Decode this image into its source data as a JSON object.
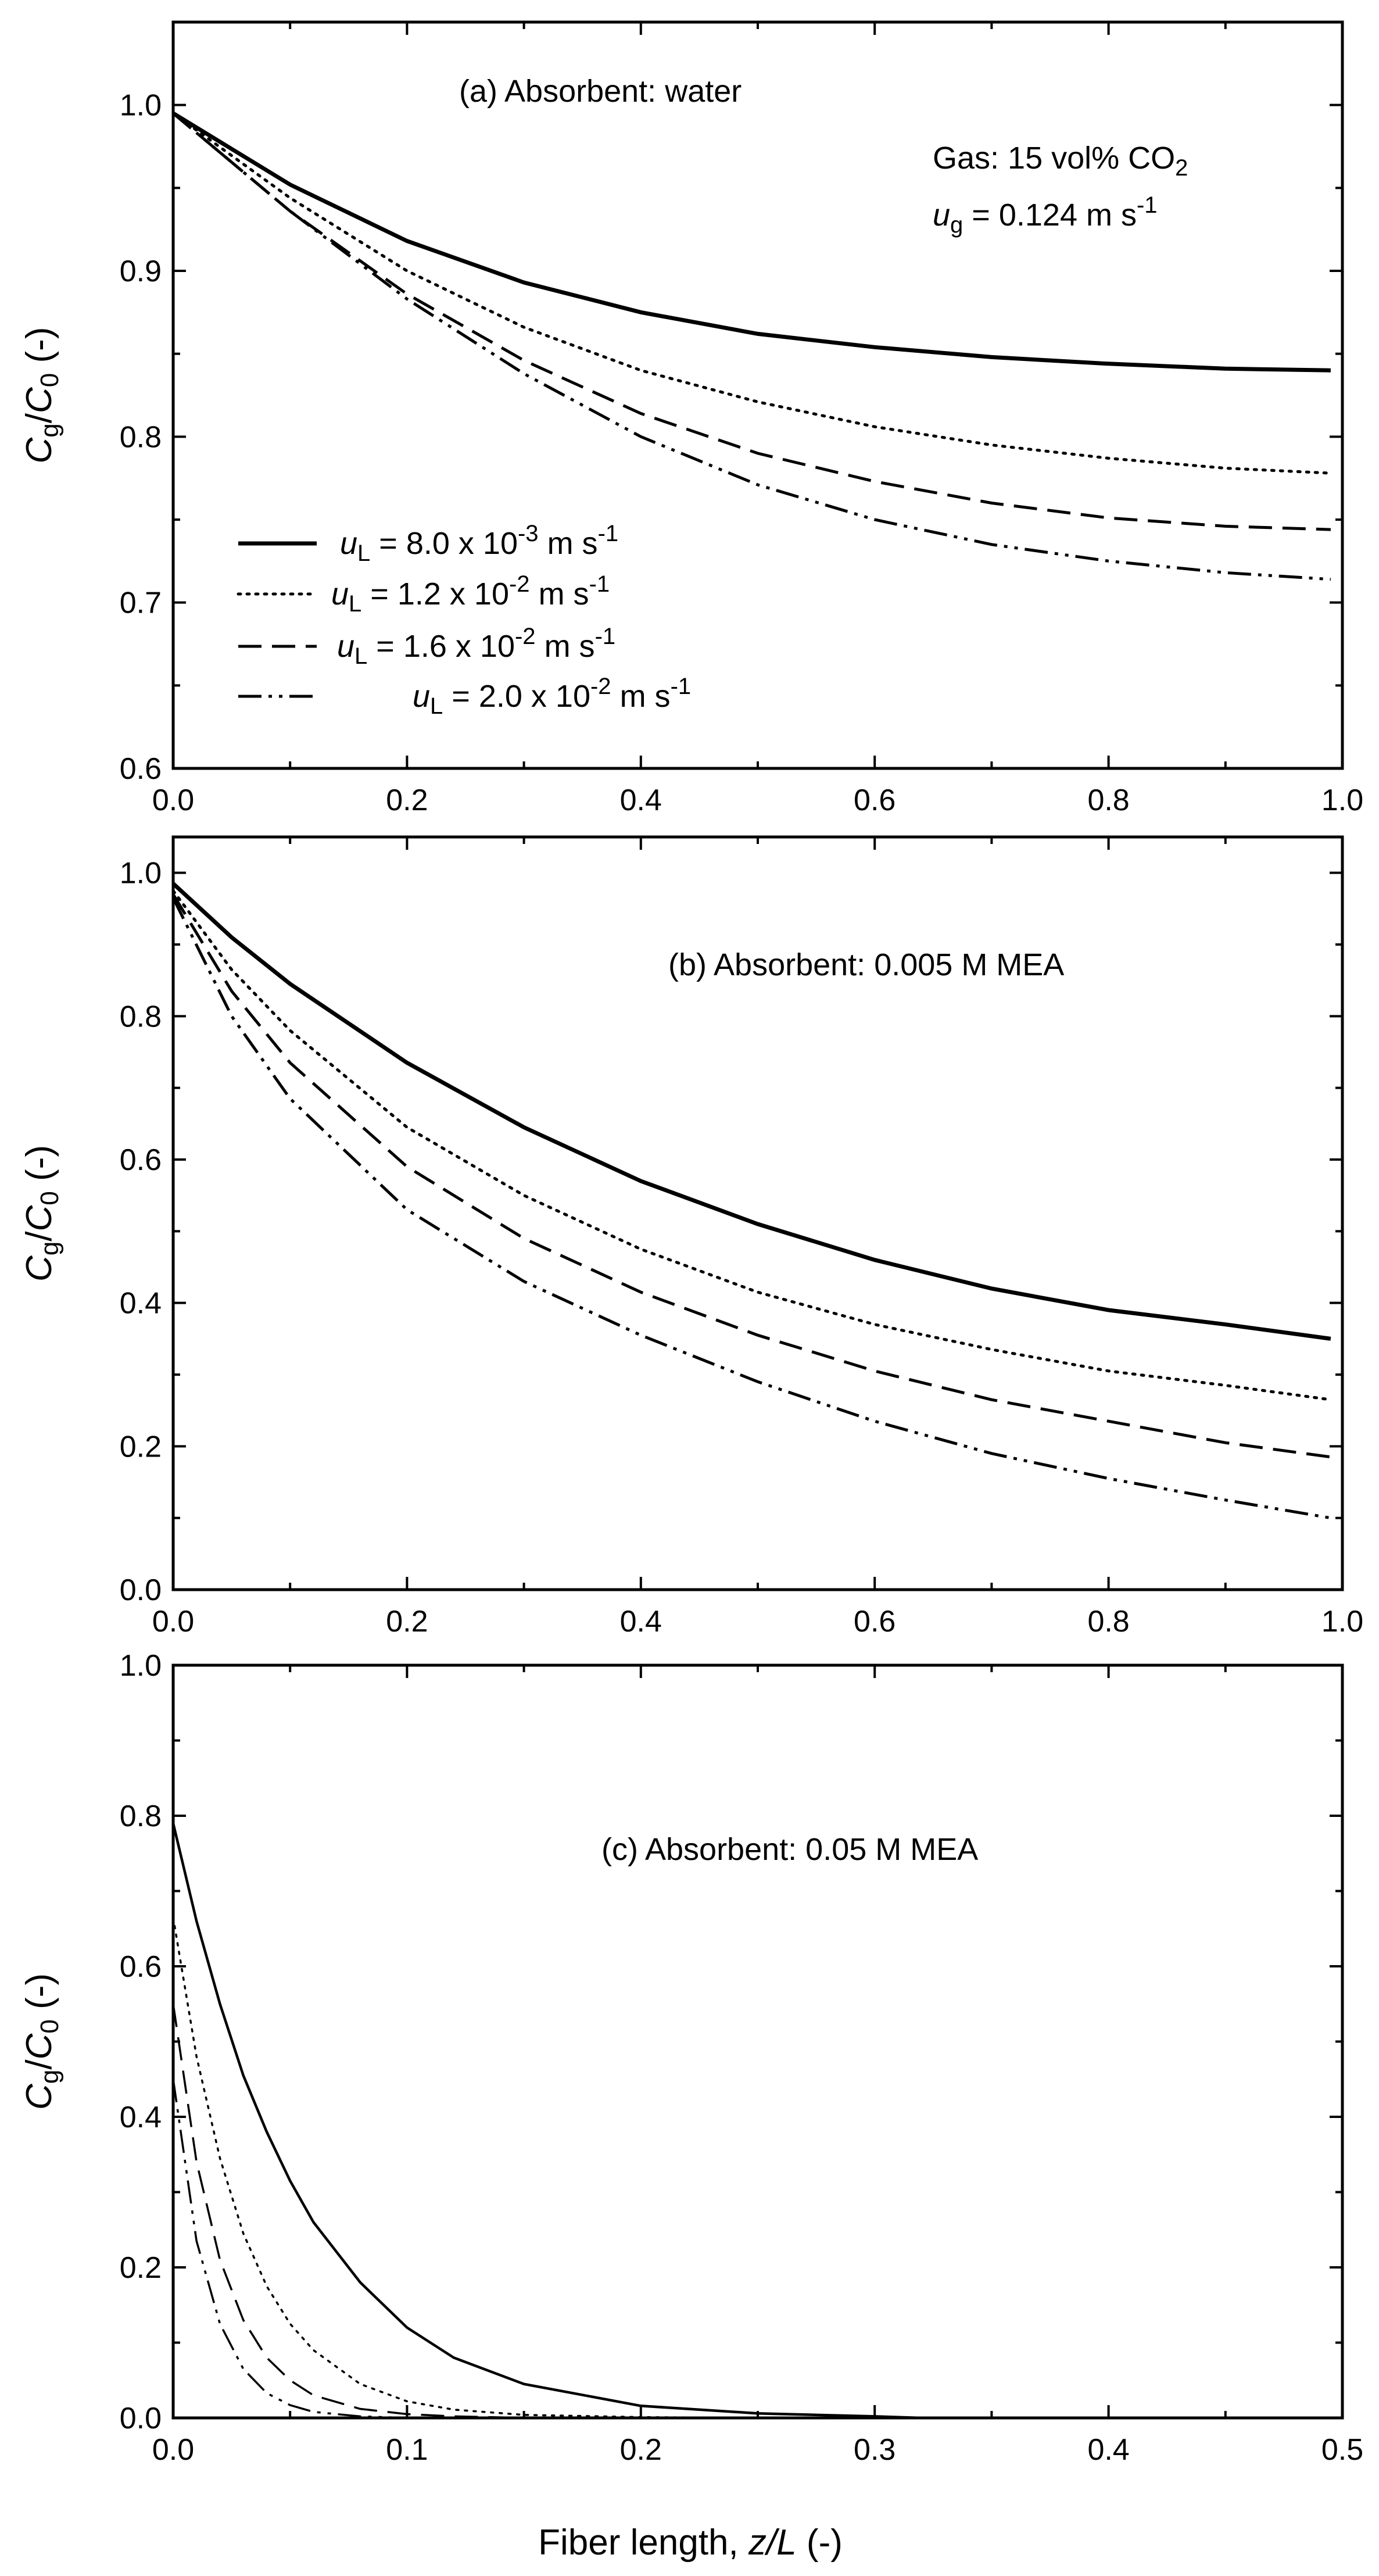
{
  "figure": {
    "xlabel_main": "Fiber length, ",
    "xlabel_var": "z/L",
    "xlabel_unit": " (-)"
  },
  "legend": [
    {
      "id": "s1",
      "label_var": "u",
      "label_sub": "L",
      "label_text": " = 8.0 x 10",
      "label_exp": "-3",
      "label_unit": " m s",
      "label_unit_exp": "-1",
      "dash": "solid"
    },
    {
      "id": "s2",
      "label_var": "u",
      "label_sub": "L",
      "label_text": " = 1.2 x 10",
      "label_exp": "-2",
      "label_unit": " m s",
      "label_unit_exp": "-1",
      "dash": "dotted"
    },
    {
      "id": "s3",
      "label_var": "u",
      "label_sub": "L",
      "label_text": " = 1.6 x 10",
      "label_exp": "-2",
      "label_unit": " m s",
      "label_unit_exp": "-1",
      "dash": "dashed"
    },
    {
      "id": "s4",
      "label_var": "u",
      "label_sub": "L",
      "label_text": " = 2.0 x 10",
      "label_exp": "-2",
      "label_unit": " m s",
      "label_unit_exp": "-1",
      "dash": "dash-dot-dot"
    }
  ],
  "chart_data": [
    {
      "type": "line",
      "title": "(a) Absorbent: water",
      "annotation_gas": "Gas: 15 vol% CO",
      "annotation_gas_sub": "2",
      "annotation_ug_var": "u",
      "annotation_ug_sub": "g",
      "annotation_ug_text": " = 0.124 m s",
      "annotation_ug_exp": "-1",
      "ylabel_var1": "C",
      "ylabel_sub1": "g",
      "ylabel_var2": "C",
      "ylabel_sub2": "0",
      "ylabel_unit": " (-)",
      "xlim": [
        0,
        1.0
      ],
      "ylim": [
        0.6,
        1.05
      ],
      "xticks": [
        "0.0",
        "0.2",
        "0.4",
        "0.6",
        "0.8",
        "1.0"
      ],
      "yticks": [
        "0.6",
        "0.7",
        "0.8",
        "0.9",
        "1.0"
      ],
      "x": [
        0,
        0.1,
        0.2,
        0.3,
        0.4,
        0.5,
        0.6,
        0.7,
        0.8,
        0.9,
        0.99
      ],
      "series": [
        {
          "name": "uL = 8.0 x 10^-3 m s^-1",
          "values": [
            0.995,
            0.952,
            0.918,
            0.893,
            0.875,
            0.862,
            0.854,
            0.848,
            0.844,
            0.841,
            0.84
          ]
        },
        {
          "name": "uL = 1.2 x 10^-2 m s^-1",
          "values": [
            0.995,
            0.944,
            0.9,
            0.866,
            0.84,
            0.821,
            0.806,
            0.795,
            0.787,
            0.781,
            0.778
          ]
        },
        {
          "name": "uL = 1.6 x 10^-2 m s^-1",
          "values": [
            0.995,
            0.936,
            0.886,
            0.846,
            0.814,
            0.79,
            0.773,
            0.76,
            0.751,
            0.746,
            0.744
          ]
        },
        {
          "name": "uL = 2.0 x 10^-2 m s^-1",
          "values": [
            0.995,
            0.936,
            0.883,
            0.838,
            0.8,
            0.771,
            0.75,
            0.735,
            0.725,
            0.718,
            0.714
          ]
        }
      ]
    },
    {
      "type": "line",
      "title": "(b) Absorbent: 0.005 M MEA",
      "ylabel_var1": "C",
      "ylabel_sub1": "g",
      "ylabel_var2": "C",
      "ylabel_sub2": "0",
      "ylabel_unit": " (-)",
      "xlim": [
        0,
        1.0
      ],
      "ylim": [
        0,
        1.05
      ],
      "xticks": [
        "0.0",
        "0.2",
        "0.4",
        "0.6",
        "0.8",
        "1.0"
      ],
      "yticks": [
        "0.0",
        "0.2",
        "0.4",
        "0.6",
        "0.8",
        "1.0"
      ],
      "x": [
        0,
        0.05,
        0.1,
        0.2,
        0.3,
        0.4,
        0.5,
        0.6,
        0.7,
        0.8,
        0.9,
        0.99
      ],
      "series": [
        {
          "name": "uL = 8.0 x 10^-3 m s^-1",
          "values": [
            0.985,
            0.91,
            0.845,
            0.735,
            0.645,
            0.57,
            0.51,
            0.46,
            0.42,
            0.39,
            0.37,
            0.35
          ]
        },
        {
          "name": "uL = 1.2 x 10^-2 m s^-1",
          "values": [
            0.975,
            0.865,
            0.78,
            0.645,
            0.55,
            0.475,
            0.415,
            0.37,
            0.335,
            0.305,
            0.285,
            0.265
          ]
        },
        {
          "name": "uL = 1.6 x 10^-2 m s^-1",
          "values": [
            0.97,
            0.835,
            0.735,
            0.59,
            0.49,
            0.415,
            0.355,
            0.305,
            0.265,
            0.235,
            0.205,
            0.185
          ]
        },
        {
          "name": "uL = 2.0 x 10^-2 m s^-1",
          "values": [
            0.965,
            0.8,
            0.685,
            0.53,
            0.43,
            0.355,
            0.29,
            0.235,
            0.19,
            0.155,
            0.125,
            0.1
          ]
        }
      ]
    },
    {
      "type": "line",
      "title": "(c) Absorbent: 0.05 M MEA",
      "ylabel_var1": "C",
      "ylabel_sub1": "g",
      "ylabel_var2": "C",
      "ylabel_sub2": "0",
      "ylabel_unit": " (-)",
      "xlim": [
        0,
        0.5
      ],
      "ylim": [
        0,
        1.0
      ],
      "xticks": [
        "0.0",
        "0.1",
        "0.2",
        "0.3",
        "0.4",
        "0.5"
      ],
      "yticks": [
        "0.0",
        "0.2",
        "0.4",
        "0.6",
        "0.8",
        "1.0"
      ],
      "x": [
        0,
        0.01,
        0.02,
        0.03,
        0.04,
        0.05,
        0.06,
        0.08,
        0.1,
        0.12,
        0.15,
        0.2,
        0.25,
        0.3,
        0.32
      ],
      "series": [
        {
          "name": "uL = 8.0 x 10^-3 m s^-1",
          "values": [
            0.79,
            0.66,
            0.55,
            0.455,
            0.38,
            0.315,
            0.26,
            0.18,
            0.12,
            0.08,
            0.045,
            0.016,
            0.006,
            0.002,
            0.0
          ]
        },
        {
          "name": "uL = 1.2 x 10^-2 m s^-1",
          "values": [
            0.665,
            0.48,
            0.345,
            0.245,
            0.175,
            0.125,
            0.09,
            0.045,
            0.022,
            0.011,
            0.004,
            0.001,
            0.0,
            0.0,
            0.0
          ]
        },
        {
          "name": "uL = 1.6 x 10^-2 m s^-1",
          "values": [
            0.55,
            0.34,
            0.21,
            0.13,
            0.08,
            0.05,
            0.03,
            0.012,
            0.005,
            0.002,
            0.0,
            0.0,
            0.0,
            0.0,
            0.0
          ]
        },
        {
          "name": "uL = 2.0 x 10^-2 m s^-1",
          "values": [
            0.45,
            0.235,
            0.125,
            0.065,
            0.033,
            0.017,
            0.008,
            0.002,
            0.0,
            0.0,
            0.0,
            0.0,
            0.0,
            0.0,
            0.0
          ]
        }
      ]
    }
  ]
}
